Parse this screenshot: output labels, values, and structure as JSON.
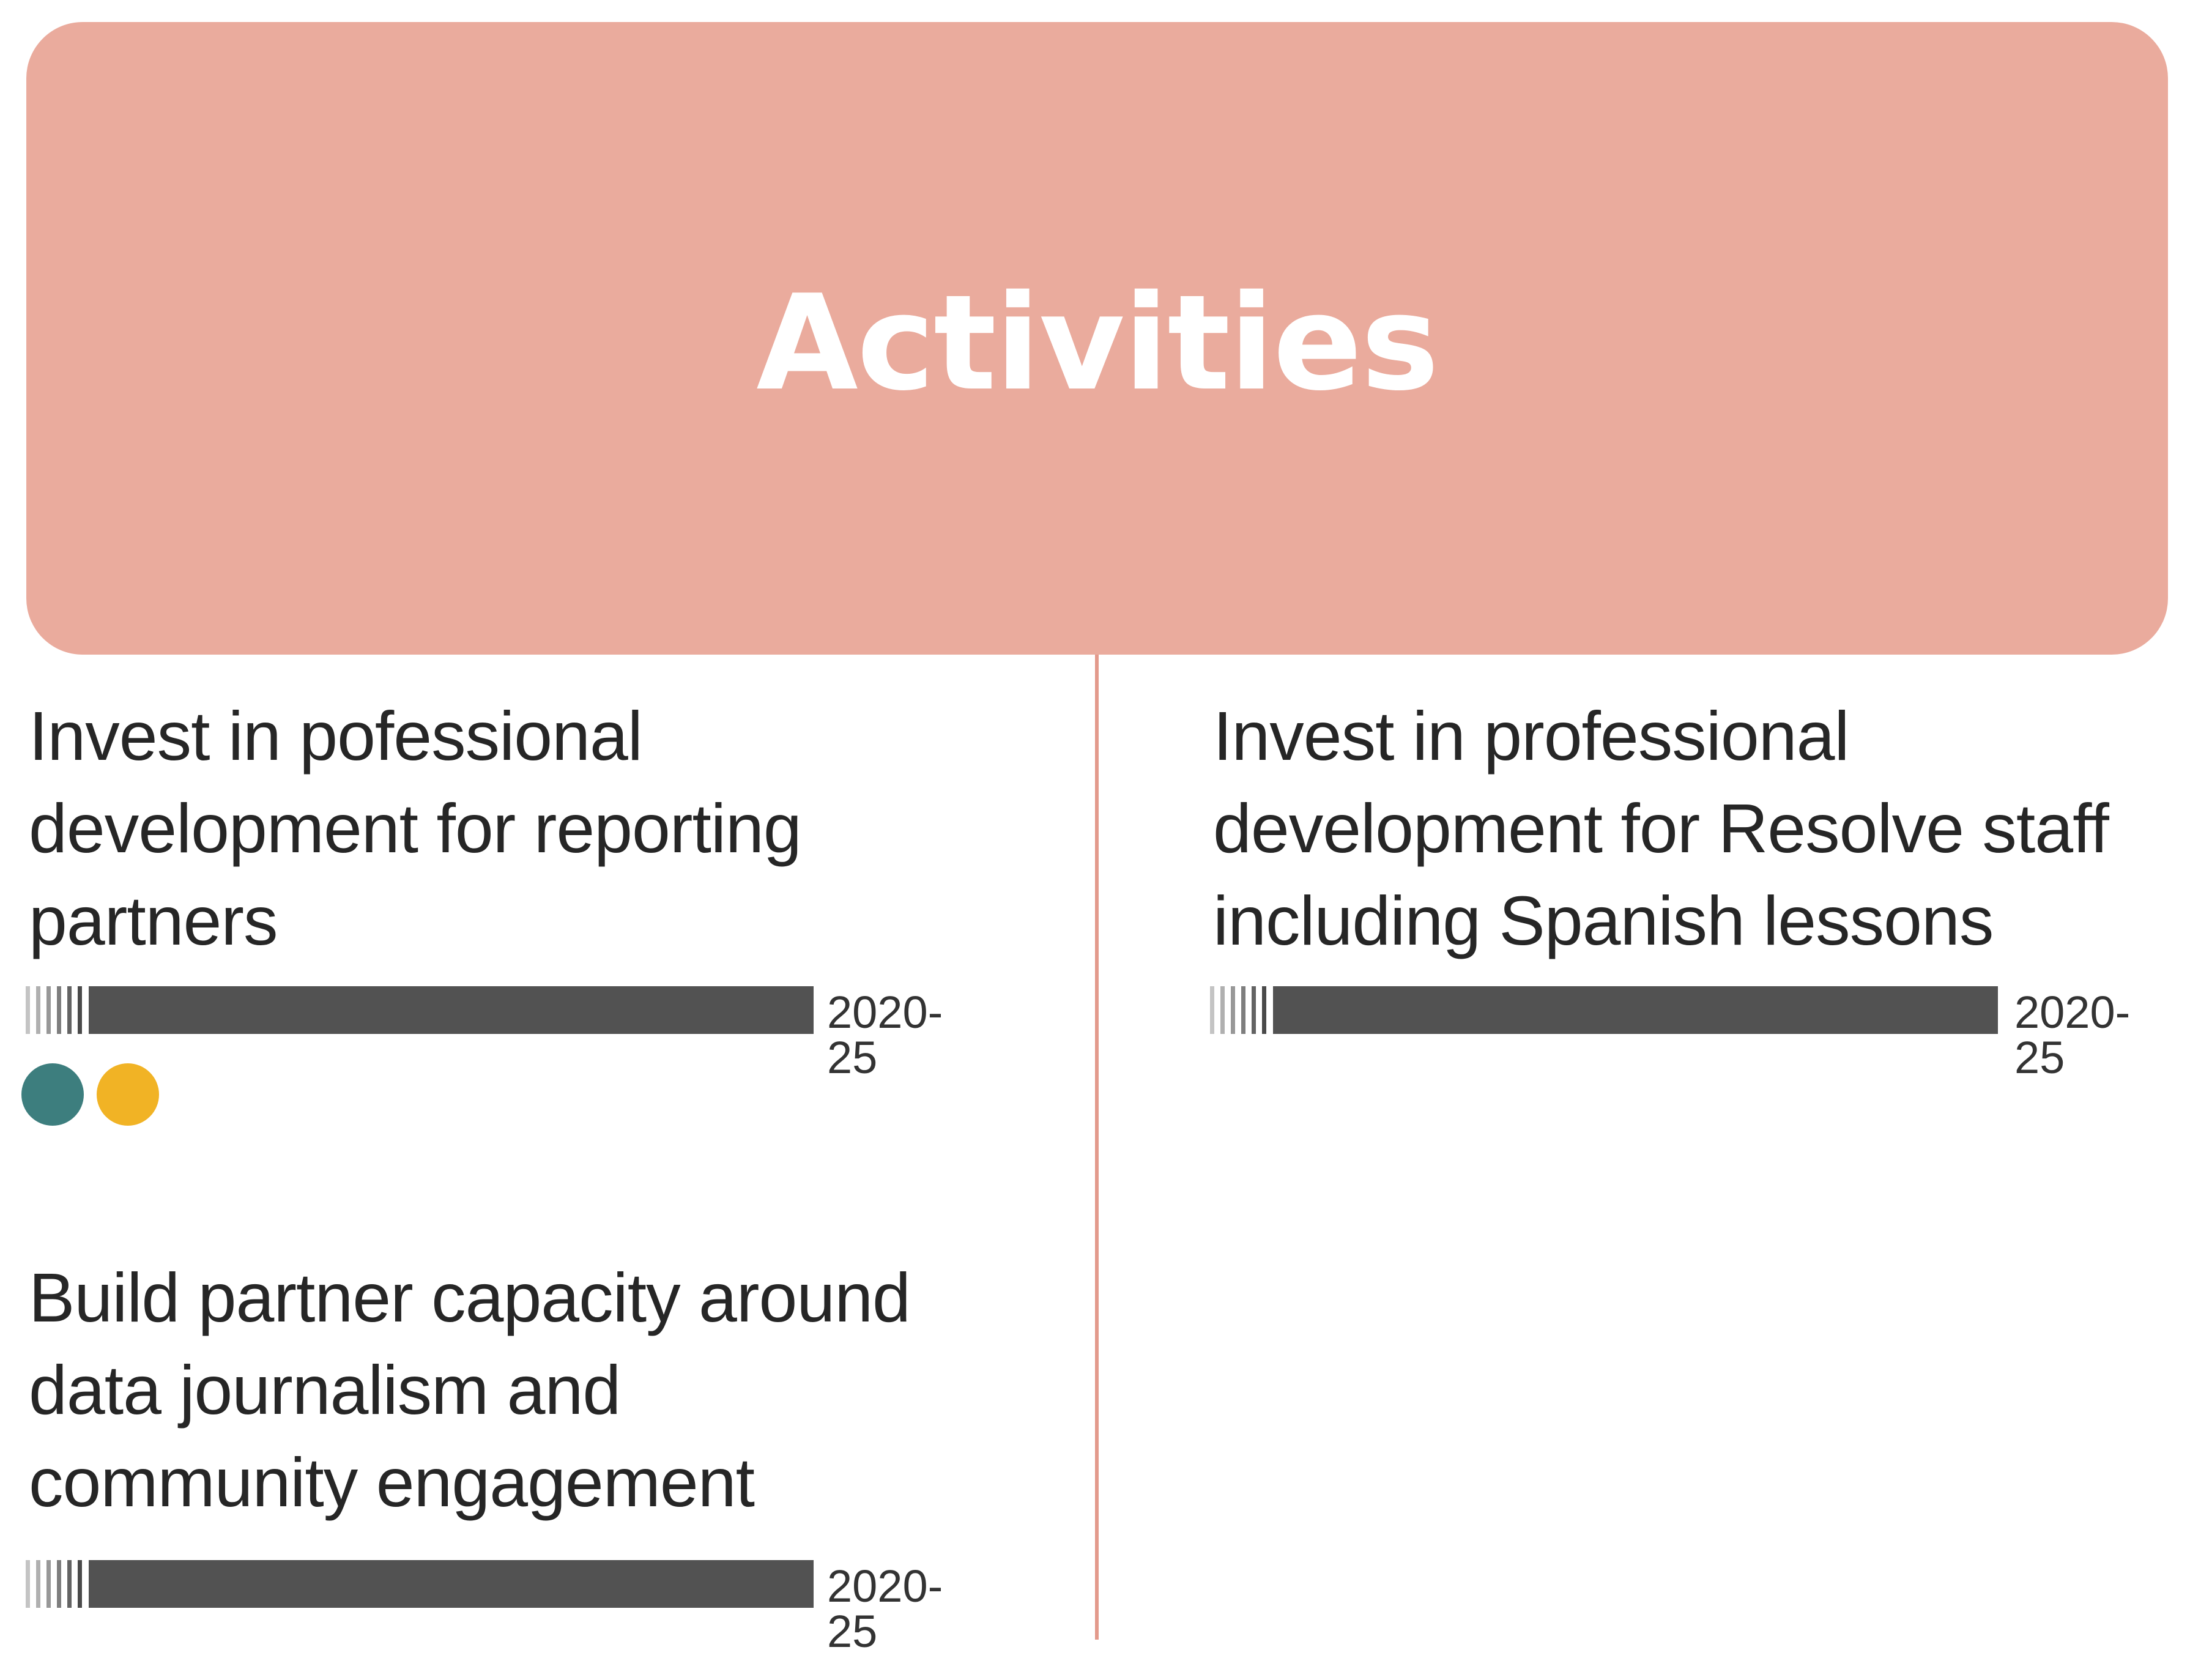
{
  "header": {
    "title": "Activities",
    "color": "#EAAB9D"
  },
  "activities": [
    {
      "text": "Invest in pofessional\ndevelopment for reporting\npartners",
      "years": "2020-25",
      "tags": [
        {
          "name": "teal-dot",
          "color": "#3D7E7E"
        },
        {
          "name": "yellow-dot",
          "color": "#F1B325"
        }
      ]
    },
    {
      "text": "Invest in professional\ndevelopment for Resolve staff\nincluding Spanish lessons",
      "years": "2020-25",
      "tags": []
    },
    {
      "text": "Build partner capacity around\ndata journalism and\ncommunity engagement",
      "years": "2020-25",
      "tags": []
    }
  ],
  "colors": {
    "bar": "#525252",
    "divider": "#E39A8C",
    "hatch": [
      "#C4C4C4",
      "#B0B0B0",
      "#989898",
      "#7E7E7E",
      "#636363",
      "#4A4A4A"
    ]
  }
}
